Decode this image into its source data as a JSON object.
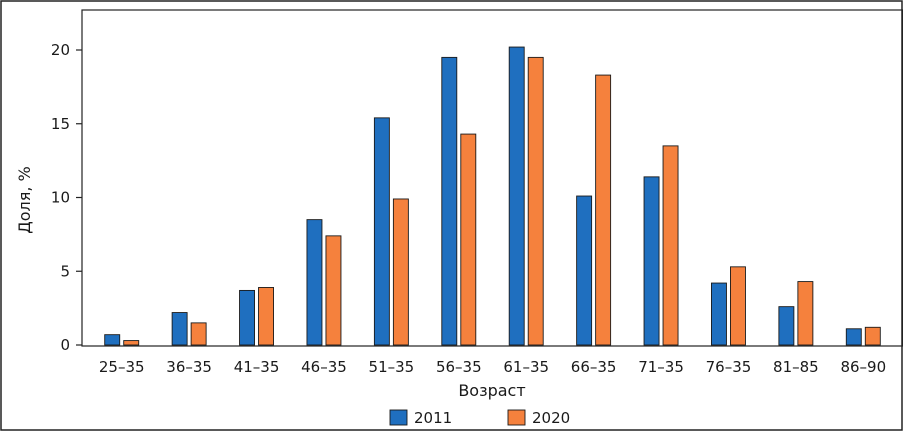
{
  "chart_data": {
    "type": "bar",
    "xlabel": "Возраст",
    "ylabel": "Доля, %",
    "ylim": [
      0,
      22
    ],
    "yticks": [
      0,
      5,
      10,
      15,
      20
    ],
    "grid": false,
    "legend_position": "bottom",
    "categories": [
      "25–35",
      "36–35",
      "41–35",
      "46–35",
      "51–35",
      "56–35",
      "61–35",
      "66–35",
      "71–35",
      "76–35",
      "81–85",
      "86–90"
    ],
    "series": [
      {
        "name": "2011",
        "color": "#1f6fbf",
        "values": [
          0.7,
          2.2,
          3.7,
          8.5,
          15.4,
          19.5,
          20.2,
          10.1,
          11.4,
          4.2,
          2.6,
          1.1
        ]
      },
      {
        "name": "2020",
        "color": "#f5813d",
        "values": [
          0.3,
          1.5,
          3.9,
          7.4,
          9.9,
          14.3,
          19.5,
          18.3,
          13.5,
          5.3,
          4.3,
          1.2
        ]
      }
    ]
  }
}
